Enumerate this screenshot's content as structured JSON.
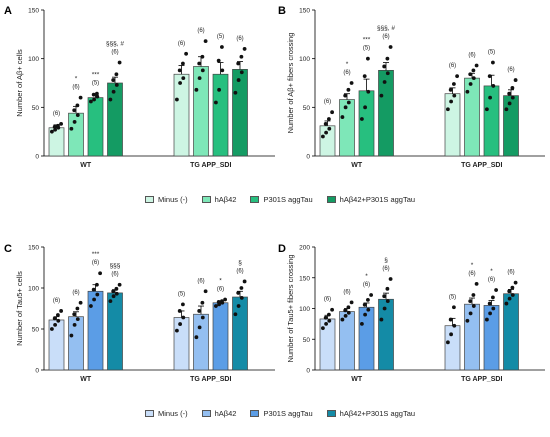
{
  "chart_data": [
    {
      "type": "bar",
      "panel": "A",
      "ylabel": "Number of Aβ+ cells",
      "ylim": [
        0,
        150
      ],
      "yticks": [
        0,
        50,
        100,
        150
      ],
      "groups": [
        "WT",
        "TG APP_SDI"
      ],
      "series": [
        {
          "name": "Minus (-)",
          "color": "#cdf5e3",
          "values": [
            29,
            84
          ],
          "errors": [
            3,
            9
          ],
          "n": [
            "(6)",
            "(6)"
          ],
          "sig": [
            "",
            ""
          ],
          "points": [
            [
              25,
              27,
              29,
              30,
              31,
              33
            ],
            [
              58,
              75,
              80,
              88,
              95,
              105
            ]
          ]
        },
        {
          "name": "hAβ42",
          "color": "#7ee7b8",
          "values": [
            44,
            92
          ],
          "errors": [
            7,
            10
          ],
          "n": [
            "(6)",
            "(6)"
          ],
          "sig": [
            "*",
            ""
          ],
          "points": [
            [
              28,
              35,
              42,
              47,
              52,
              60
            ],
            [
              68,
              80,
              88,
              95,
              102,
              118
            ]
          ]
        },
        {
          "name": "P301S aggTau",
          "color": "#27bf7f",
          "values": [
            60,
            84
          ],
          "errors": [
            3,
            12
          ],
          "n": [
            "(5)",
            "(5)"
          ],
          "sig": [
            "***",
            ""
          ],
          "points": [
            [
              56,
              58,
              61,
              63,
              64
            ],
            [
              55,
              68,
              88,
              98,
              112
            ]
          ]
        },
        {
          "name": "hAβ42+P301S aggTau",
          "color": "#149b63",
          "values": [
            75,
            89
          ],
          "errors": [
            6,
            8
          ],
          "n": [
            "(6)",
            "(6)"
          ],
          "sig": [
            "§§§, #",
            ""
          ],
          "points": [
            [
              58,
              66,
              73,
              78,
              84,
              96
            ],
            [
              65,
              78,
              86,
              95,
              102,
              110
            ]
          ]
        }
      ]
    },
    {
      "type": "bar",
      "panel": "B",
      "ylabel": "Number of Aβ+ fibers crossing",
      "ylim": [
        0,
        150
      ],
      "yticks": [
        0,
        50,
        100,
        150
      ],
      "groups": [
        "WT",
        "TG APP_SDI"
      ],
      "series": [
        {
          "name": "Minus (-)",
          "color": "#cdf5e3",
          "values": [
            31,
            64
          ],
          "errors": [
            5,
            6
          ],
          "n": [
            "(6)",
            "(6)"
          ],
          "sig": [
            "",
            ""
          ],
          "points": [
            [
              20,
              24,
              28,
              33,
              38,
              45
            ],
            [
              48,
              56,
              62,
              68,
              74,
              82
            ]
          ]
        },
        {
          "name": "hAβ42",
          "color": "#7ee7b8",
          "values": [
            58,
            80
          ],
          "errors": [
            6,
            5
          ],
          "n": [
            "(6)",
            "(6)"
          ],
          "sig": [
            "*",
            ""
          ],
          "points": [
            [
              40,
              50,
              55,
              62,
              68,
              75
            ],
            [
              66,
              74,
              80,
              84,
              88,
              93
            ]
          ]
        },
        {
          "name": "P301S aggTau",
          "color": "#27bf7f",
          "values": [
            67,
            72
          ],
          "errors": [
            12,
            11
          ],
          "n": [
            "(5)",
            "(5)"
          ],
          "sig": [
            "***",
            ""
          ],
          "points": [
            [
              38,
              50,
              66,
              82,
              100
            ],
            [
              48,
              60,
              72,
              82,
              96
            ]
          ]
        },
        {
          "name": "hAβ42+P301S aggTau",
          "color": "#149b63",
          "values": [
            88,
            62
          ],
          "errors": [
            8,
            6
          ],
          "n": [
            "(6)",
            "(6)"
          ],
          "sig": [
            "§§§, #",
            ""
          ],
          "points": [
            [
              62,
              76,
              85,
              92,
              100,
              112
            ],
            [
              48,
              54,
              60,
              64,
              70,
              78
            ]
          ]
        }
      ]
    },
    {
      "type": "bar",
      "panel": "C",
      "ylabel": "Number of Tau5+ cells",
      "ylim": [
        0,
        150
      ],
      "yticks": [
        0,
        50,
        100,
        150
      ],
      "groups": [
        "WT",
        "TG APP_SDI"
      ],
      "series": [
        {
          "name": "Minus (-)",
          "color": "#c9def9",
          "values": [
            61,
            64
          ],
          "errors": [
            4,
            8
          ],
          "n": [
            "(6)",
            "(5)"
          ],
          "sig": [
            "",
            ""
          ],
          "points": [
            [
              50,
              55,
              60,
              63,
              67,
              72
            ],
            [
              48,
              56,
              64,
              72,
              80
            ]
          ]
        },
        {
          "name": "hAβ42",
          "color": "#94bff1",
          "values": [
            65,
            68
          ],
          "errors": [
            6,
            10
          ],
          "n": [
            "(6)",
            "(6)"
          ],
          "sig": [
            "",
            ""
          ],
          "points": [
            [
              42,
              55,
              62,
              68,
              75,
              82
            ],
            [
              40,
              52,
              64,
              72,
              82,
              96
            ]
          ]
        },
        {
          "name": "P301S aggTau",
          "color": "#5b9de6",
          "values": [
            96,
            82
          ],
          "errors": [
            8,
            2
          ],
          "n": [
            "(6)",
            "(6)"
          ],
          "sig": [
            "***",
            "*"
          ],
          "points": [
            [
              78,
              86,
              92,
              98,
              104,
              118
            ],
            [
              78,
              80,
              82,
              83,
              84,
              86
            ]
          ]
        },
        {
          "name": "hAβ42+P301S aggTau",
          "color": "#148ba6",
          "values": [
            94,
            89
          ],
          "errors": [
            4,
            7
          ],
          "n": [
            "(6)",
            "(6)"
          ],
          "sig": [
            "§§§",
            "§"
          ],
          "points": [
            [
              84,
              90,
              93,
              96,
              99,
              104
            ],
            [
              68,
              78,
              88,
              94,
              100,
              108
            ]
          ]
        }
      ]
    },
    {
      "type": "bar",
      "panel": "D",
      "ylabel": "Number of Tau5+ fibers crossing",
      "ylim": [
        0,
        200
      ],
      "yticks": [
        0,
        50,
        100,
        150,
        200
      ],
      "groups": [
        "WT",
        "TG APP_SDI"
      ],
      "series": [
        {
          "name": "Minus (-)",
          "color": "#c9def9",
          "values": [
            83,
            72
          ],
          "errors": [
            6,
            12
          ],
          "n": [
            "(6)",
            "(5)"
          ],
          "sig": [
            "",
            ""
          ],
          "points": [
            [
              68,
              75,
              80,
              85,
              90,
              98
            ],
            [
              45,
              58,
              72,
              82,
              102
            ]
          ]
        },
        {
          "name": "hAβ42",
          "color": "#94bff1",
          "values": [
            95,
            107
          ],
          "errors": [
            5,
            10
          ],
          "n": [
            "(6)",
            "(6)"
          ],
          "sig": [
            "",
            "*"
          ],
          "points": [
            [
              82,
              88,
              93,
              97,
              102,
              110
            ],
            [
              80,
              92,
              104,
              112,
              122,
              140
            ]
          ]
        },
        {
          "name": "P301S aggTau",
          "color": "#5b9de6",
          "values": [
            102,
            105
          ],
          "errors": [
            7,
            8
          ],
          "n": [
            "(6)",
            "(6)"
          ],
          "sig": [
            "*",
            "*"
          ],
          "points": [
            [
              75,
              90,
              98,
              106,
              114,
              122
            ],
            [
              82,
              92,
              100,
              108,
              118,
              130
            ]
          ]
        },
        {
          "name": "hAβ42+P301S aggTau",
          "color": "#148ba6",
          "values": [
            115,
            124
          ],
          "errors": [
            10,
            7
          ],
          "n": [
            "(6)",
            "(6)"
          ],
          "sig": [
            "§",
            ""
          ],
          "points": [
            [
              82,
              100,
              112,
              120,
              132,
              148
            ],
            [
              108,
              116,
              122,
              128,
              134,
              142
            ]
          ]
        }
      ]
    }
  ],
  "legends": [
    {
      "items": [
        {
          "label": "Minus (-)",
          "color": "#cdf5e3"
        },
        {
          "label": "hAβ42",
          "color": "#7ee7b8"
        },
        {
          "label": "P301S aggTau",
          "color": "#27bf7f"
        },
        {
          "label": "hAβ42+P301S aggTau",
          "color": "#149b63"
        }
      ]
    },
    {
      "items": [
        {
          "label": "Minus (-)",
          "color": "#c9def9"
        },
        {
          "label": "hAβ42",
          "color": "#94bff1"
        },
        {
          "label": "P301S aggTau",
          "color": "#5b9de6"
        },
        {
          "label": "hAβ42+P301S aggTau",
          "color": "#148ba6"
        }
      ]
    }
  ]
}
